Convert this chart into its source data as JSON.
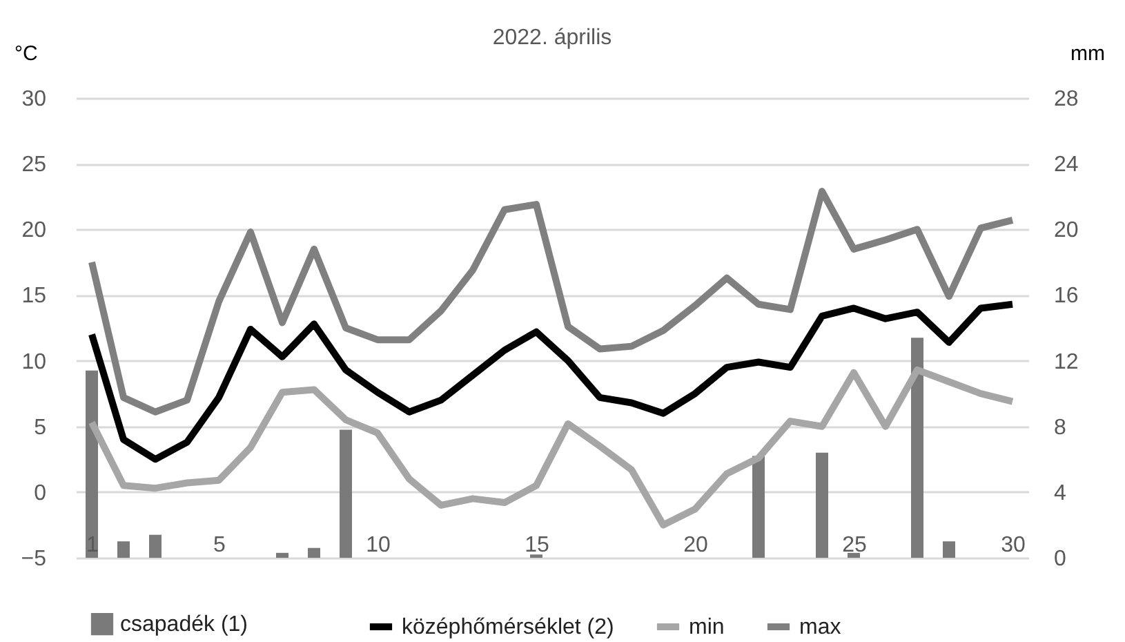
{
  "chart_data": {
    "type": "line",
    "title": "2022. április",
    "ylabel": "°C",
    "y2label": "mm",
    "x": [
      1,
      2,
      3,
      4,
      5,
      6,
      7,
      8,
      9,
      10,
      11,
      12,
      13,
      14,
      15,
      16,
      17,
      18,
      19,
      20,
      21,
      22,
      23,
      24,
      25,
      26,
      27,
      28,
      29,
      30
    ],
    "xlim": [
      0.5,
      30.5
    ],
    "xticks": [
      1,
      5,
      10,
      15,
      20,
      25,
      30
    ],
    "ylim": [
      -5,
      30
    ],
    "yticks": [
      -5,
      0,
      5,
      10,
      15,
      20,
      25,
      30
    ],
    "y2lim": [
      0,
      28
    ],
    "y2ticks": [
      0,
      4,
      8,
      12,
      16,
      20,
      24,
      28
    ],
    "grid": "y",
    "legend": "bottom",
    "series": [
      {
        "name": "csapadék (1)",
        "type": "bar",
        "axis": "y2",
        "color": "#7a7a7a",
        "values": [
          11.4,
          1.0,
          1.4,
          0,
          0,
          0,
          0.3,
          0.6,
          7.8,
          0,
          0,
          0,
          0,
          0,
          0.2,
          0,
          0,
          0,
          0,
          0,
          0,
          6.2,
          0,
          6.4,
          0.3,
          0,
          13.4,
          1.0,
          0,
          0
        ]
      },
      {
        "name": "középhőmérséklet (2)",
        "type": "line",
        "color": "#000000",
        "values": [
          12.0,
          4.0,
          2.5,
          3.8,
          7.2,
          12.4,
          10.3,
          12.8,
          9.3,
          7.6,
          6.1,
          7.0,
          8.9,
          10.8,
          12.2,
          10.0,
          7.2,
          6.8,
          6.0,
          7.5,
          9.5,
          9.9,
          9.5,
          13.4,
          14.0,
          13.2,
          13.7,
          11.4,
          14.0,
          14.3
        ]
      },
      {
        "name": "min",
        "type": "line",
        "color": "#a6a6a6",
        "values": [
          5.3,
          0.5,
          0.3,
          0.7,
          0.9,
          3.4,
          7.6,
          7.8,
          5.5,
          4.5,
          1.0,
          -1.0,
          -0.5,
          -0.8,
          0.5,
          5.2,
          3.5,
          1.7,
          -2.5,
          -1.3,
          1.4,
          2.6,
          5.4,
          5.0,
          9.1,
          5.0,
          9.3,
          8.4,
          7.5,
          6.9
        ]
      },
      {
        "name": "max",
        "type": "line",
        "color": "#808080",
        "values": [
          17.5,
          7.2,
          6.1,
          7.0,
          14.5,
          19.8,
          12.9,
          18.5,
          12.5,
          11.6,
          11.6,
          13.8,
          16.9,
          21.5,
          21.9,
          12.6,
          10.9,
          11.1,
          12.3,
          14.2,
          16.3,
          14.3,
          13.9,
          22.9,
          18.5,
          19.2,
          20.0,
          14.9,
          20.1,
          20.7
        ]
      }
    ]
  }
}
